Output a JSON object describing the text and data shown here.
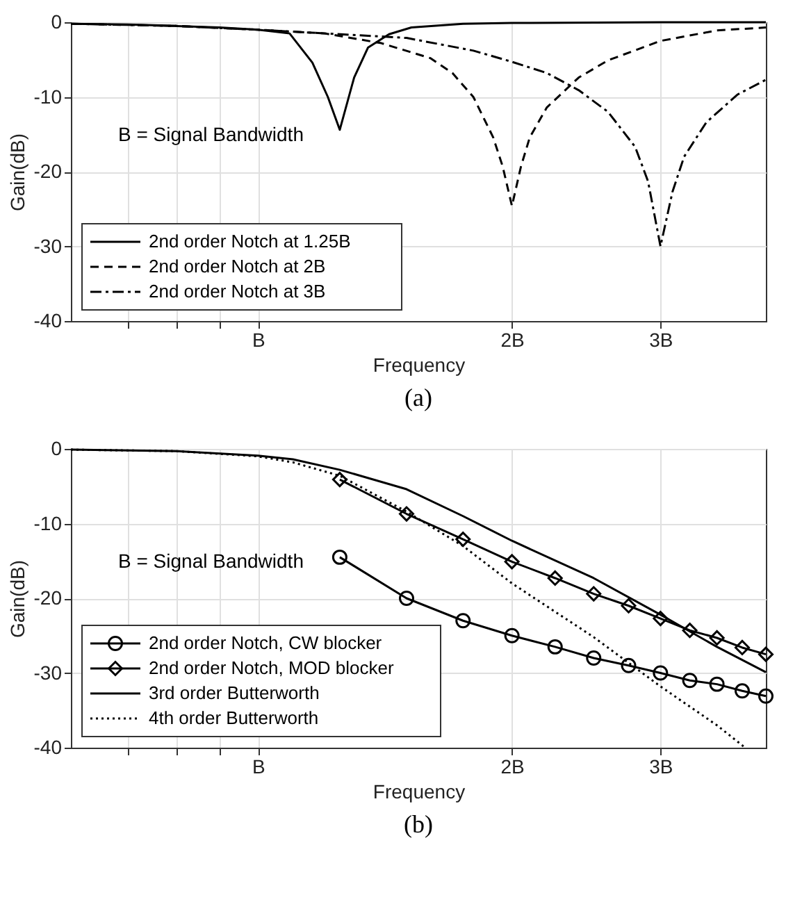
{
  "chart_data": [
    {
      "type": "line",
      "title": "(a)",
      "xlabel": "Frequency",
      "ylabel": "Gain(dB)",
      "log": "x",
      "xlim": [
        0.6,
        4
      ],
      "ylim": [
        -40,
        0
      ],
      "xticks": [
        {
          "value": 0.7,
          "label": null
        },
        {
          "value": 0.8,
          "label": null
        },
        {
          "value": 0.9,
          "label": null
        },
        {
          "value": 1,
          "label": "B"
        },
        {
          "value": 2,
          "label": "2B"
        },
        {
          "value": 3,
          "label": "3B"
        }
      ],
      "yticks": [
        -40,
        -30,
        -20,
        -10,
        0
      ],
      "grid": true,
      "legend": "bottom left",
      "annotations": [
        "B = Signal Bandwidth"
      ],
      "series": [
        {
          "name": "2nd order Notch at 1.25B",
          "color": "#000000",
          "line_style": "solid",
          "marker": "none",
          "x": [
            0.6,
            0.7,
            0.8,
            0.9,
            1.0,
            1.09,
            1.16,
            1.21,
            1.25,
            1.3,
            1.35,
            1.43,
            1.52,
            1.75,
            2.0,
            3.0,
            4.0
          ],
          "values": [
            -0.2,
            -0.3,
            -0.5,
            -0.7,
            -1.0,
            -1.5,
            -5.4,
            -10,
            -14.4,
            -7.4,
            -3.4,
            -1.6,
            -0.7,
            -0.2,
            -0.1,
            0,
            0
          ]
        },
        {
          "name": "2nd order Notch at 2B",
          "color": "#000000",
          "line_style": "dashed",
          "marker": "none",
          "x": [
            0.6,
            0.8,
            1.0,
            1.2,
            1.4,
            1.6,
            1.7,
            1.8,
            1.9,
            1.95,
            2.0,
            2.05,
            2.1,
            2.2,
            2.4,
            2.6,
            3.0,
            3.5,
            4.0
          ],
          "values": [
            -0.2,
            -0.5,
            -1.0,
            -1.5,
            -2.8,
            -4.8,
            -6.8,
            -10,
            -15.4,
            -19.3,
            -24.6,
            -19.3,
            -15.4,
            -11.4,
            -7.4,
            -5.1,
            -2.5,
            -1.1,
            -0.7
          ]
        },
        {
          "name": "2nd order Notch at 3B",
          "color": "#000000",
          "line_style": "dashdot",
          "marker": "none",
          "x": [
            0.6,
            0.8,
            1.0,
            1.5,
            1.8,
            2.0,
            2.2,
            2.4,
            2.6,
            2.8,
            2.9,
            3.0,
            3.1,
            3.2,
            3.4,
            3.7,
            4.0
          ],
          "values": [
            -0.2,
            -0.5,
            -1.0,
            -2.1,
            -3.8,
            -5.3,
            -6.8,
            -9.1,
            -12,
            -16.7,
            -21.3,
            -30,
            -22.7,
            -18,
            -13.4,
            -9.7,
            -7.7
          ]
        }
      ]
    },
    {
      "type": "line",
      "title": "(b)",
      "xlabel": "Frequency",
      "ylabel": "Gain(dB)",
      "log": "x",
      "xlim": [
        0.6,
        4
      ],
      "ylim": [
        -40,
        0
      ],
      "xticks": [
        {
          "value": 0.7,
          "label": null
        },
        {
          "value": 0.8,
          "label": null
        },
        {
          "value": 0.9,
          "label": null
        },
        {
          "value": 1,
          "label": "B"
        },
        {
          "value": 2,
          "label": "2B"
        },
        {
          "value": 3,
          "label": "3B"
        }
      ],
      "yticks": [
        -40,
        -30,
        -20,
        -10,
        0
      ],
      "grid": true,
      "legend": "bottom left",
      "annotations": [
        "B = Signal Bandwidth"
      ],
      "series": [
        {
          "name": "2nd order Notch, CW blocker",
          "color": "#000000",
          "line_style": "solid",
          "marker": "circle",
          "x": [
            1.25,
            1.5,
            1.75,
            2.0,
            2.25,
            2.5,
            2.75,
            3.0,
            3.25,
            3.5,
            3.75,
            4.0
          ],
          "values": [
            -14.5,
            -20,
            -23,
            -25,
            -26.5,
            -28,
            -29,
            -30,
            -31,
            -31.5,
            -32.4,
            -33.1
          ]
        },
        {
          "name": "2nd order Notch, MOD blocker",
          "color": "#000000",
          "line_style": "solid",
          "marker": "diamond",
          "x": [
            1.25,
            1.5,
            1.75,
            2.0,
            2.25,
            2.5,
            2.75,
            3.0,
            3.25,
            3.5,
            3.75,
            4.0
          ],
          "values": [
            -4.1,
            -8.7,
            -12.1,
            -15.1,
            -17.3,
            -19.4,
            -21,
            -22.7,
            -24.3,
            -25.3,
            -26.6,
            -27.5
          ]
        },
        {
          "name": "3rd order Butterworth",
          "color": "#000000",
          "line_style": "solid",
          "marker": "none",
          "x": [
            0.6,
            0.8,
            1.0,
            1.1,
            1.25,
            1.5,
            1.75,
            2.0,
            2.5,
            3.0,
            3.5,
            4.0
          ],
          "values": [
            -0.1,
            -0.3,
            -0.9,
            -1.4,
            -2.8,
            -5.4,
            -9,
            -12.3,
            -17.3,
            -22.2,
            -26.5,
            -29.9
          ]
        },
        {
          "name": "4th order Butterworth",
          "color": "#000000",
          "line_style": "dotted",
          "marker": "none",
          "x": [
            0.6,
            0.8,
            1.0,
            1.1,
            1.25,
            1.5,
            1.75,
            2.0,
            2.5,
            3.0,
            3.5,
            3.78
          ],
          "values": [
            -0.1,
            -0.3,
            -1.0,
            -1.8,
            -3.6,
            -8.4,
            -13,
            -18,
            -25.2,
            -31.8,
            -37,
            -40
          ]
        }
      ]
    }
  ]
}
